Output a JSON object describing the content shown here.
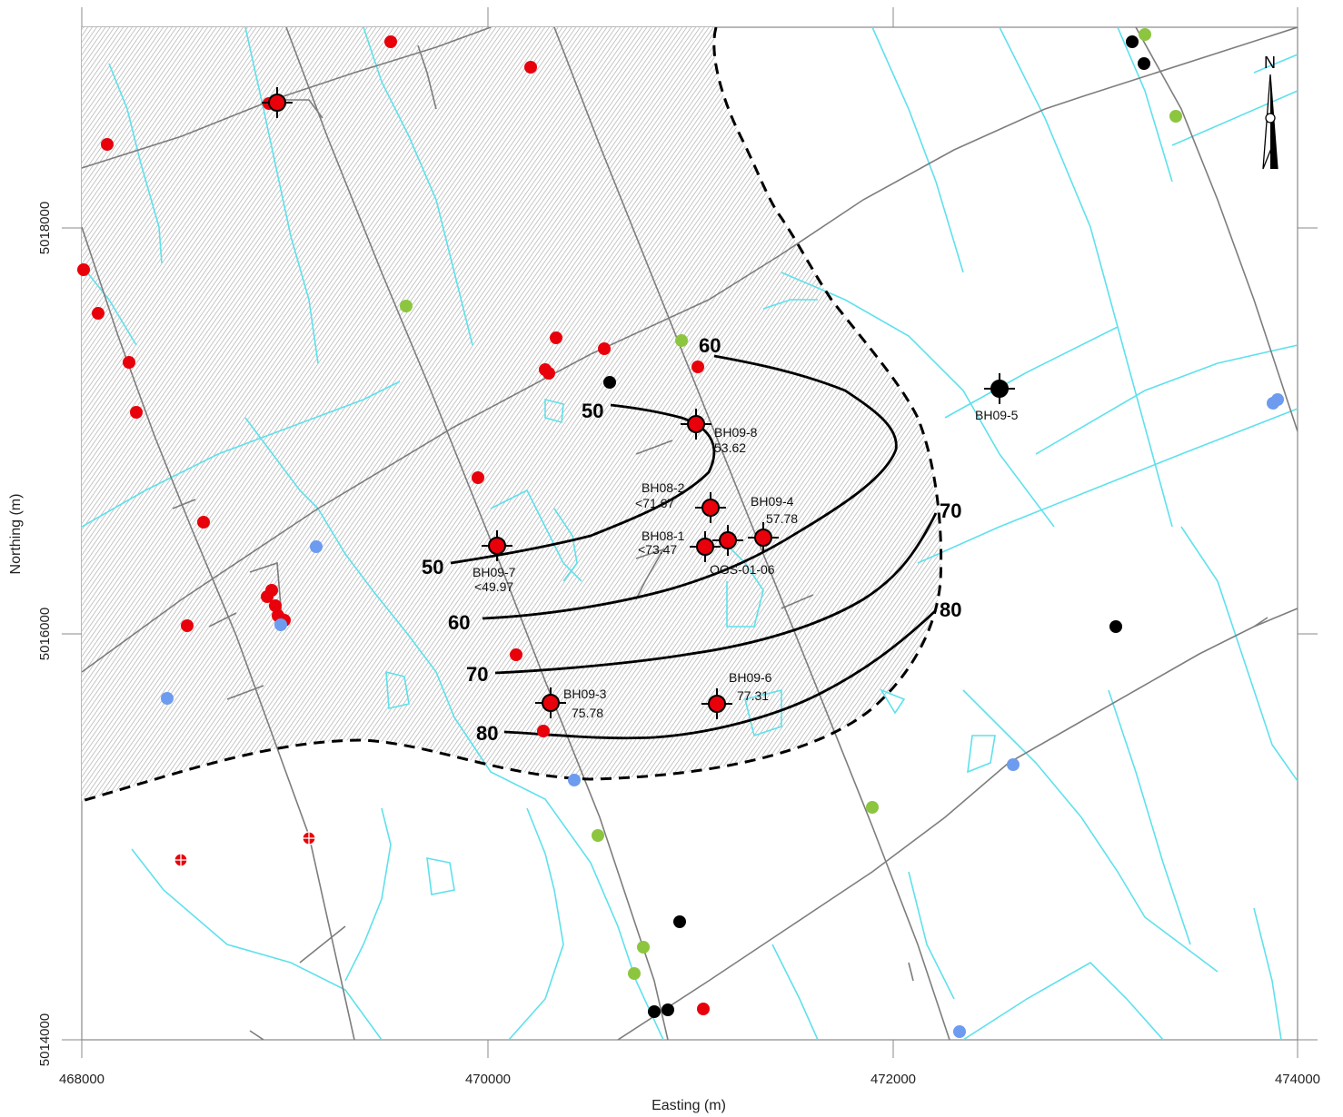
{
  "axes": {
    "x_title": "Easting (m)",
    "y_title": "Northing (m)",
    "x_ticks": [
      "468000",
      "470000",
      "472000",
      "474000"
    ],
    "y_ticks": [
      "5018000",
      "5016000",
      "5014000"
    ]
  },
  "north_arrow": {
    "label": "N",
    "icon": "north-arrow-icon"
  },
  "colors": {
    "red_well": "#e8000b",
    "green_well": "#8cc63f",
    "blue_well": "#6d9bef",
    "black_well": "#000000",
    "stream": "#5ee1ec",
    "road": "#777777",
    "hatch_area": "#d9d9d9"
  },
  "contours": [
    {
      "value": "50",
      "label_a": "50",
      "label_b": "50"
    },
    {
      "value": "60",
      "label_a": "60",
      "label_b": "60"
    },
    {
      "value": "70",
      "label_a": "70",
      "label_b": "70"
    },
    {
      "value": "80",
      "label_a": "80",
      "label_b": "80"
    }
  ],
  "boreholes": [
    {
      "name": "BH09-8",
      "value": "53.62"
    },
    {
      "name": "BH08-2",
      "value": "<71.67"
    },
    {
      "name": "BH09-4",
      "value": "57.78"
    },
    {
      "name": "BH08-1",
      "value": "<73.47"
    },
    {
      "name": "OGS-01-06",
      "value": ""
    },
    {
      "name": "BH09-7",
      "value": "<49.97"
    },
    {
      "name": "BH09-3",
      "value": "75.78"
    },
    {
      "name": "BH09-6",
      "value": "77.31"
    },
    {
      "name": "BH09-5",
      "value": ""
    }
  ]
}
